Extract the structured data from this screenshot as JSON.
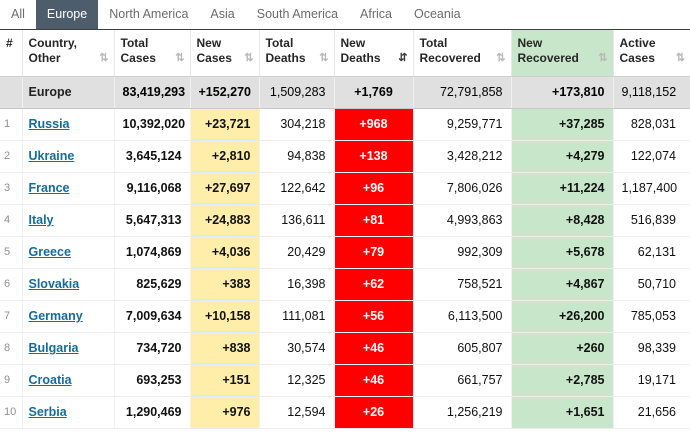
{
  "tabs": [
    {
      "label": "All",
      "selected": false
    },
    {
      "label": "Europe",
      "selected": true
    },
    {
      "label": "North America",
      "selected": false
    },
    {
      "label": "Asia",
      "selected": false
    },
    {
      "label": "South America",
      "selected": false
    },
    {
      "label": "Africa",
      "selected": false
    },
    {
      "label": "Oceania",
      "selected": false
    }
  ],
  "icons": {
    "sort": "⇅",
    "sort_active": "⇵"
  },
  "colors": {
    "selected_tab_bg": "#4e5d6c",
    "new_cases_bg": "#ffeeaa",
    "new_deaths_bg": "#ff0000",
    "new_recovered_bg": "#c8e6c9",
    "totals_bg": "#e0e0e0",
    "link_color": "#156b9a"
  },
  "table": {
    "headers": [
      {
        "lines": [
          "#"
        ],
        "sortable": false,
        "sorted": false
      },
      {
        "lines": [
          "Country,",
          "Other"
        ],
        "sortable": true,
        "sorted": false
      },
      {
        "lines": [
          "Total",
          "Cases"
        ],
        "sortable": true,
        "sorted": false
      },
      {
        "lines": [
          "New",
          "Cases"
        ],
        "sortable": true,
        "sorted": false
      },
      {
        "lines": [
          "Total",
          "Deaths"
        ],
        "sortable": true,
        "sorted": false
      },
      {
        "lines": [
          "New",
          "Deaths"
        ],
        "sortable": true,
        "sorted": true
      },
      {
        "lines": [
          "Total",
          "Recovered"
        ],
        "sortable": true,
        "sorted": false
      },
      {
        "lines": [
          "New",
          "Recovered"
        ],
        "sortable": true,
        "sorted": false
      },
      {
        "lines": [
          "Active",
          "Cases"
        ],
        "sortable": true,
        "sorted": false
      }
    ],
    "totals_row": {
      "label": "Europe",
      "total_cases": "83,419,293",
      "new_cases": "+152,270",
      "total_deaths": "1,509,283",
      "new_deaths": "+1,769",
      "total_recovered": "72,791,858",
      "new_recovered": "+173,810",
      "active_cases": "9,118,152"
    },
    "rows": [
      {
        "rank": "1",
        "country": "Russia",
        "total_cases": "10,392,020",
        "new_cases": "+23,721",
        "total_deaths": "304,218",
        "new_deaths": "+968",
        "total_recovered": "9,259,771",
        "new_recovered": "+37,285",
        "active_cases": "828,031"
      },
      {
        "rank": "2",
        "country": "Ukraine",
        "total_cases": "3,645,124",
        "new_cases": "+2,810",
        "total_deaths": "94,838",
        "new_deaths": "+138",
        "total_recovered": "3,428,212",
        "new_recovered": "+4,279",
        "active_cases": "122,074"
      },
      {
        "rank": "3",
        "country": "France",
        "total_cases": "9,116,068",
        "new_cases": "+27,697",
        "total_deaths": "122,642",
        "new_deaths": "+96",
        "total_recovered": "7,806,026",
        "new_recovered": "+11,224",
        "active_cases": "1,187,400"
      },
      {
        "rank": "4",
        "country": "Italy",
        "total_cases": "5,647,313",
        "new_cases": "+24,883",
        "total_deaths": "136,611",
        "new_deaths": "+81",
        "total_recovered": "4,993,863",
        "new_recovered": "+8,428",
        "active_cases": "516,839"
      },
      {
        "rank": "5",
        "country": "Greece",
        "total_cases": "1,074,869",
        "new_cases": "+4,036",
        "total_deaths": "20,429",
        "new_deaths": "+79",
        "total_recovered": "992,309",
        "new_recovered": "+5,678",
        "active_cases": "62,131"
      },
      {
        "rank": "6",
        "country": "Slovakia",
        "total_cases": "825,629",
        "new_cases": "+383",
        "total_deaths": "16,398",
        "new_deaths": "+62",
        "total_recovered": "758,521",
        "new_recovered": "+4,867",
        "active_cases": "50,710"
      },
      {
        "rank": "7",
        "country": "Germany",
        "total_cases": "7,009,634",
        "new_cases": "+10,158",
        "total_deaths": "111,081",
        "new_deaths": "+56",
        "total_recovered": "6,113,500",
        "new_recovered": "+26,200",
        "active_cases": "785,053"
      },
      {
        "rank": "8",
        "country": "Bulgaria",
        "total_cases": "734,720",
        "new_cases": "+838",
        "total_deaths": "30,574",
        "new_deaths": "+46",
        "total_recovered": "605,807",
        "new_recovered": "+260",
        "active_cases": "98,339"
      },
      {
        "rank": "9",
        "country": "Croatia",
        "total_cases": "693,253",
        "new_cases": "+151",
        "total_deaths": "12,325",
        "new_deaths": "+46",
        "total_recovered": "661,757",
        "new_recovered": "+2,785",
        "active_cases": "19,171"
      },
      {
        "rank": "10",
        "country": "Serbia",
        "total_cases": "1,290,469",
        "new_cases": "+976",
        "total_deaths": "12,594",
        "new_deaths": "+26",
        "total_recovered": "1,256,219",
        "new_recovered": "+1,651",
        "active_cases": "21,656"
      }
    ]
  }
}
